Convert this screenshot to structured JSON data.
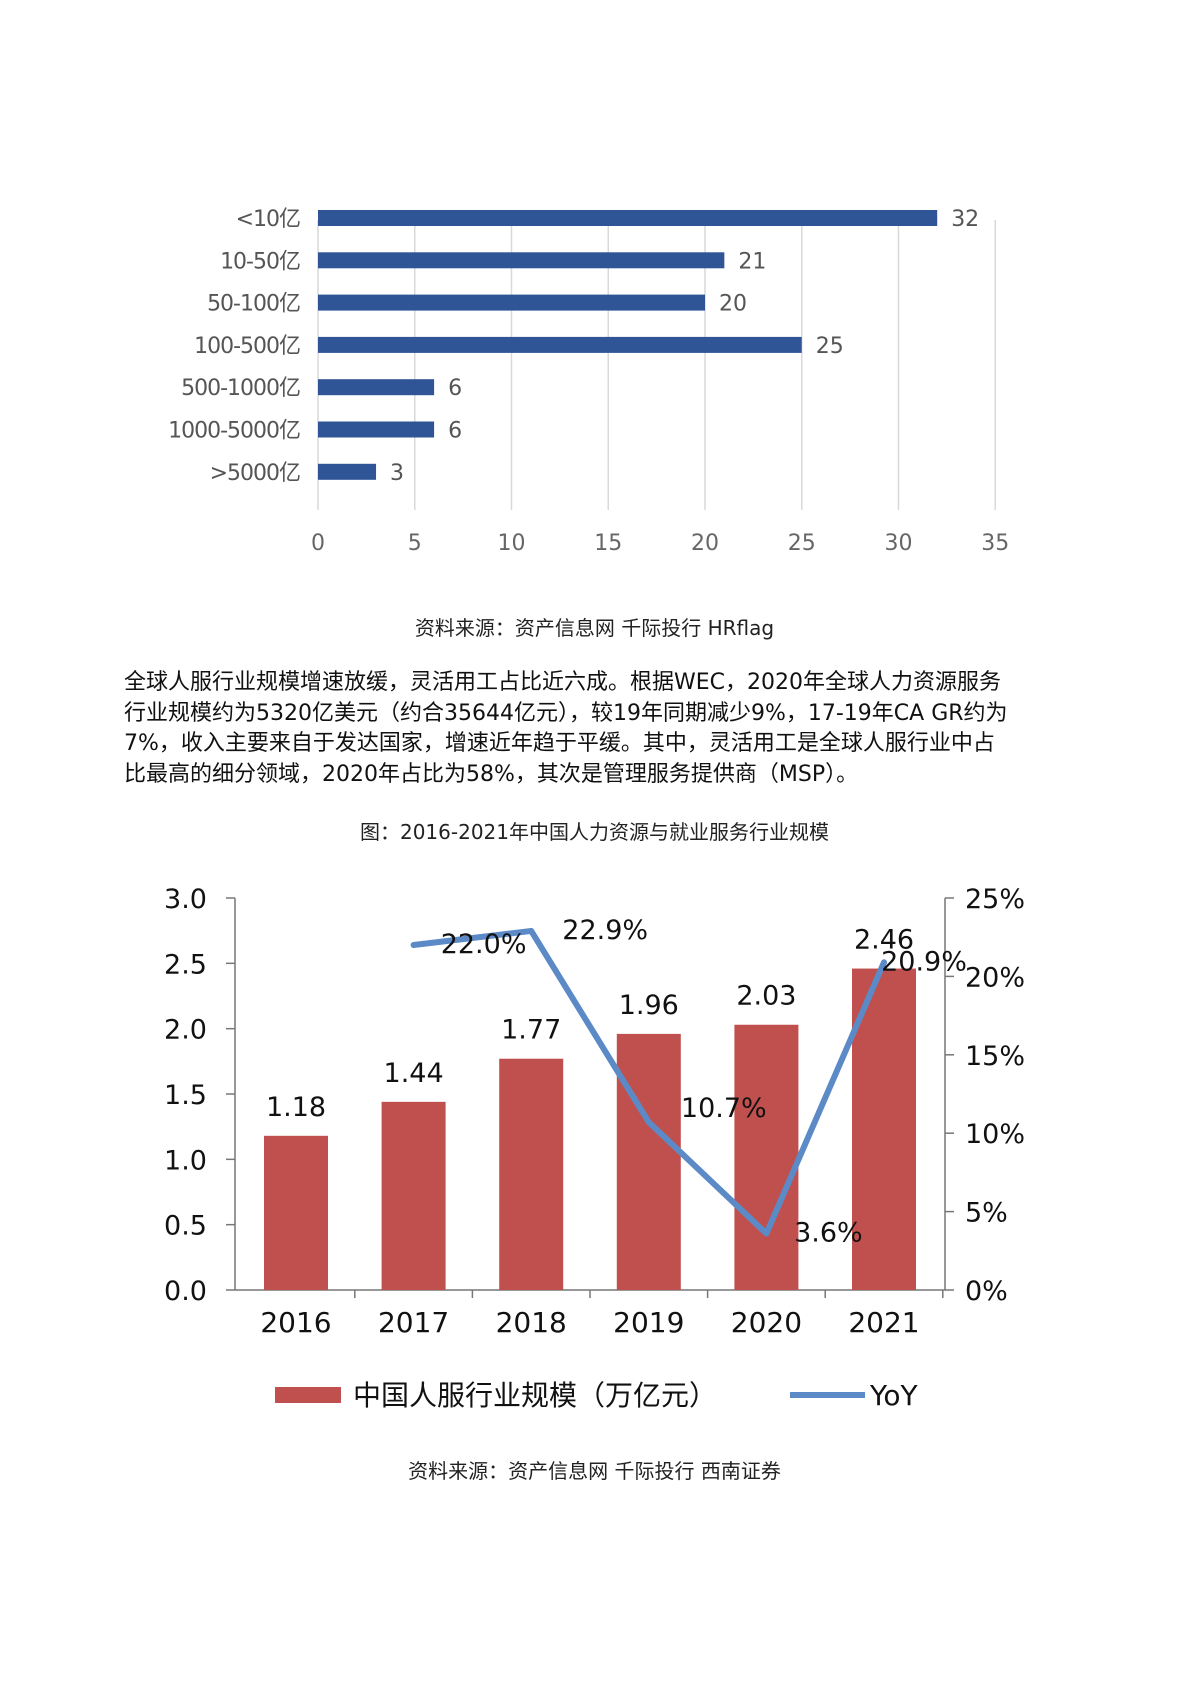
{
  "chart_data": [
    {
      "type": "bar",
      "orientation": "horizontal",
      "categories": [
        "<10亿",
        "10-50亿",
        "50-100亿",
        "100-500亿",
        "500-1000亿",
        "1000-5000亿",
        ">5000亿"
      ],
      "values": [
        32,
        21,
        20,
        25,
        6,
        6,
        3
      ],
      "xticks": [
        "0",
        "5",
        "10",
        "15",
        "20",
        "25",
        "30",
        "35"
      ],
      "xlim": [
        0,
        35
      ],
      "grid": "vertical",
      "bar_color": "#2f5597"
    },
    {
      "type": "bar+line",
      "categories": [
        "2016",
        "2017",
        "2018",
        "2019",
        "2020",
        "2021"
      ],
      "bar_series": {
        "name": "中国人服行业规模（万亿元）",
        "values": [
          1.18,
          1.44,
          1.77,
          1.96,
          2.03,
          2.46
        ],
        "labels": [
          "1.18",
          "1.44",
          "1.77",
          "1.96",
          "2.03",
          "2.46"
        ],
        "color": "#c0504d"
      },
      "line_series": {
        "name": "YoY",
        "values": [
          null,
          22.0,
          22.9,
          10.7,
          3.6,
          20.9
        ],
        "labels": [
          "",
          "22.0%",
          "22.9%",
          "10.7%",
          "3.6%",
          "20.9%"
        ],
        "color": "#5b8ac6"
      },
      "y_left": {
        "ticks": [
          "0.0",
          "0.5",
          "1.0",
          "1.5",
          "2.0",
          "2.5",
          "3.0"
        ],
        "ylim": [
          0,
          3.0
        ]
      },
      "y_right": {
        "ticks": [
          "0%",
          "5%",
          "10%",
          "15%",
          "20%",
          "25%"
        ],
        "ylim": [
          0,
          25
        ]
      },
      "legend_position": "bottom"
    }
  ],
  "captions": {
    "source1": "资料来源：资产信息网 千际投行 HRflag",
    "figure2_title": "图：2016-2021年中国人力资源与就业服务行业规模",
    "source2": "资料来源：资产信息网 千际投行 西南证券"
  },
  "paragraph": [
    "全球人服行业规模增速放缓，灵活用工占比近六成。根据WEC，2020年全球人力资源服务",
    "行业规模约为5320亿美元（约合35644亿元），较19年同期减少9%，17-19年CA GR约为",
    "7%，收入主要来自于发达国家，增速近年趋于平缓。其中，灵活用工是全球人服行业中占",
    "比最高的细分领域，2020年占比为58%，其次是管理服务提供商（MSP）。"
  ]
}
